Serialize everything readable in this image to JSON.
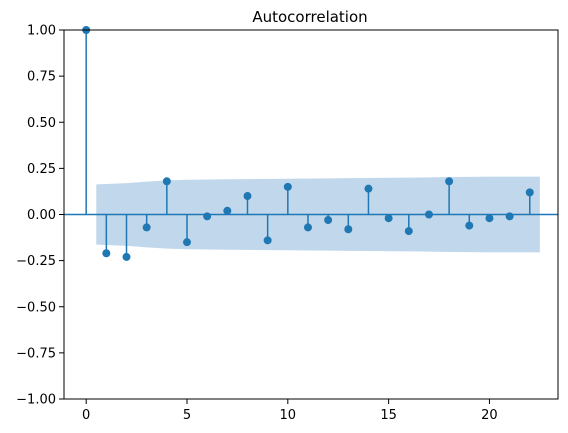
{
  "chart_data": {
    "type": "stem",
    "title": "Autocorrelation",
    "xlabel": "",
    "ylabel": "",
    "xlim": [
      -1.1,
      23.4
    ],
    "ylim": [
      -1.0,
      1.0
    ],
    "xticks": [
      0,
      5,
      10,
      15,
      20
    ],
    "xtick_labels": [
      "0",
      "5",
      "10",
      "15",
      "20"
    ],
    "yticks": [
      -1.0,
      -0.75,
      -0.5,
      -0.25,
      0.0,
      0.25,
      0.5,
      0.75,
      1.0
    ],
    "ytick_labels": [
      "−1.00",
      "−0.75",
      "−0.50",
      "−0.25",
      "0.00",
      "0.25",
      "0.50",
      "0.75",
      "1.00"
    ],
    "lags": [
      0,
      1,
      2,
      3,
      4,
      5,
      6,
      7,
      8,
      9,
      10,
      11,
      12,
      13,
      14,
      15,
      16,
      17,
      18,
      19,
      20,
      21,
      22
    ],
    "values": [
      1.0,
      -0.21,
      -0.23,
      -0.07,
      0.18,
      -0.15,
      -0.01,
      0.02,
      0.1,
      -0.14,
      0.15,
      -0.07,
      -0.03,
      -0.08,
      0.14,
      -0.02,
      -0.09,
      0.0,
      0.18,
      -0.06,
      -0.02,
      -0.01,
      0.12
    ],
    "confidence_band": {
      "x": [
        0.5,
        1,
        2,
        3,
        4,
        5,
        6,
        7,
        8,
        9,
        10,
        11,
        12,
        13,
        14,
        15,
        16,
        17,
        18,
        19,
        20,
        21,
        22,
        22.5
      ],
      "upper": [
        0.163,
        0.165,
        0.17,
        0.178,
        0.185,
        0.188,
        0.19,
        0.191,
        0.192,
        0.193,
        0.194,
        0.195,
        0.196,
        0.197,
        0.198,
        0.199,
        0.2,
        0.201,
        0.203,
        0.204,
        0.205,
        0.205,
        0.205,
        0.205
      ]
    },
    "grid": false,
    "legend": "none",
    "colors": {
      "stem": "#1f77b4",
      "band": "#c1d8ec",
      "axis": "#000000"
    }
  }
}
